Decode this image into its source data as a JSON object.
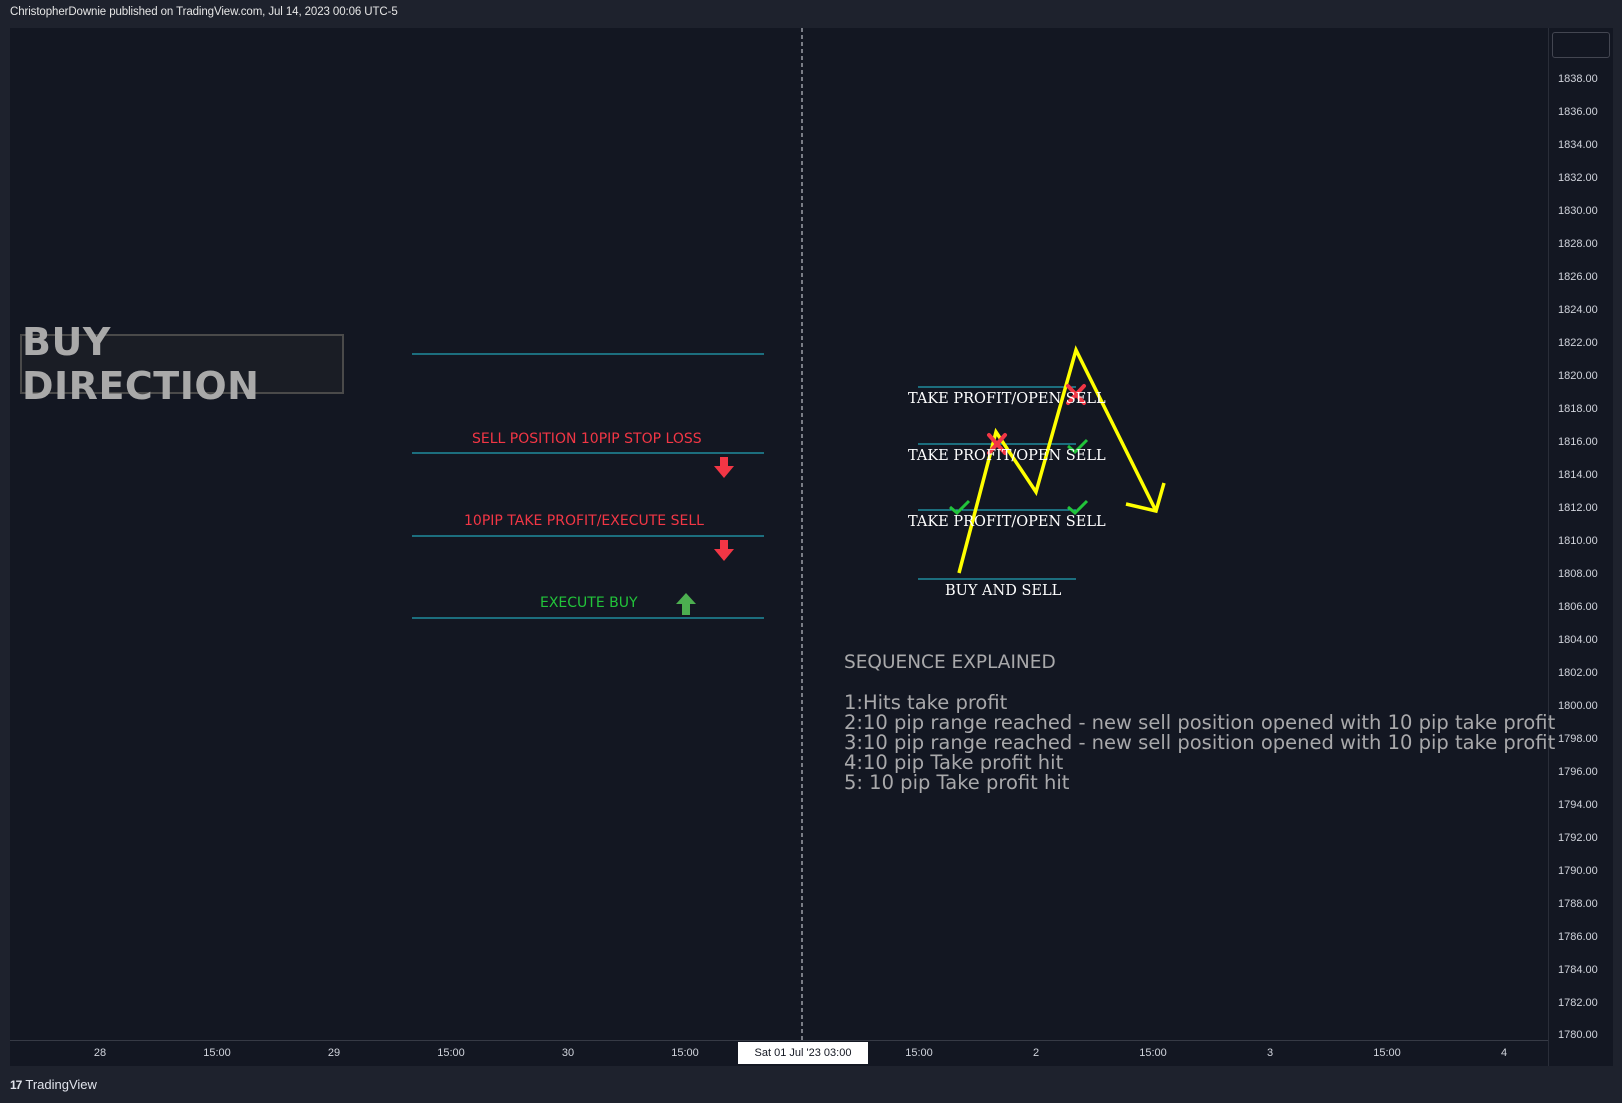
{
  "header": {
    "published": "ChristopherDownie published on TradingView.com, Jul 14, 2023 00:06 UTC-5"
  },
  "footer": {
    "brand_logo": "17",
    "brand": "TradingView"
  },
  "price_axis": {
    "ticks": [
      "1838.00",
      "1836.00",
      "1834.00",
      "1832.00",
      "1830.00",
      "1828.00",
      "1826.00",
      "1824.00",
      "1822.00",
      "1820.00",
      "1818.00",
      "1816.00",
      "1814.00",
      "1812.00",
      "1810.00",
      "1808.00",
      "1806.00",
      "1804.00",
      "1802.00",
      "1800.00",
      "1798.00",
      "1796.00",
      "1794.00",
      "1792.00",
      "1790.00",
      "1788.00",
      "1786.00",
      "1784.00",
      "1782.00",
      "1780.00"
    ]
  },
  "time_axis": {
    "ticks": [
      "28",
      "15:00",
      "29",
      "15:00",
      "30",
      "15:00",
      "15:00",
      "2",
      "15:00",
      "3",
      "15:00",
      "4"
    ],
    "cursor": "Sat 01 Jul '23   03:00"
  },
  "annotations": {
    "buy_direction": "BUY DIRECTION",
    "sell_stop_loss": "SELL POSITION 10PIP STOP LOSS",
    "take_profit_execute_sell": "10PIP TAKE PROFIT/EXECUTE SELL",
    "execute_buy": "EXECUTE BUY",
    "tp_open_sell_1": "TAKE PROFIT/OPEN SELL",
    "tp_open_sell_2": "TAKE PROFIT/OPEN SELL",
    "tp_open_sell_3": "TAKE PROFIT/OPEN SELL",
    "buy_and_sell": "BUY AND SELL"
  },
  "sequence": {
    "title": "SEQUENCE EXPLAINED",
    "lines": [
      "1:Hits take profit",
      "2:10 pip range reached - new sell position opened with 10 pip take profit",
      "3:10 pip range reached - new sell position opened with 10 pip take profit",
      "4:10 pip Take profit hit",
      "5: 10 pip Take profit hit"
    ]
  },
  "colors": {
    "background": "#131722",
    "level_line": "#26c6da",
    "path": "#ffff00",
    "sell_arrow": "#f23645",
    "buy_arrow": "#4caf50",
    "check": "#22c43a",
    "cross": "#f23645"
  }
}
